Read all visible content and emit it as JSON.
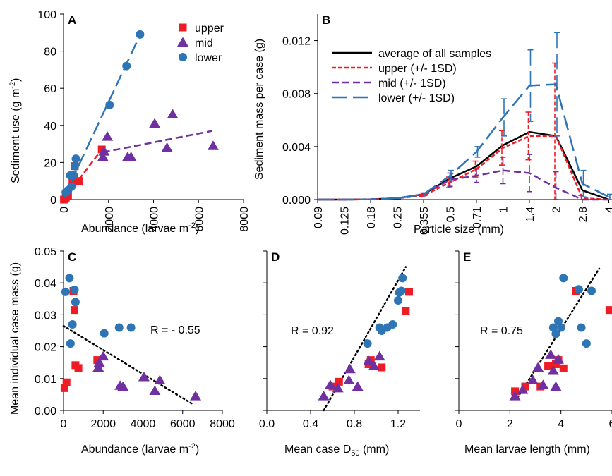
{
  "colors": {
    "upper": "#ee1c25",
    "mid": "#7030a0",
    "lower": "#2e75b6",
    "average": "#000000"
  },
  "chart_data": [
    {
      "panel": "A",
      "type": "scatter",
      "xlabel_pre": "Abundance (larvae m",
      "xlabel_sup": "-2",
      "xlabel_post": ")",
      "ylabel_pre": "Sediment use (g m",
      "ylabel_sup": "-2",
      "ylabel_post": ")",
      "xlim": [
        0,
        8000
      ],
      "ylim": [
        0,
        100
      ],
      "xticks": [
        "0",
        "2000",
        "4000",
        "6000",
        "8000"
      ],
      "yticks": [
        "0",
        "20",
        "40",
        "60",
        "80",
        "100"
      ],
      "legend_position": "top-right",
      "legend": [
        "upper",
        "mid",
        "lower"
      ],
      "series": [
        {
          "name": "upper",
          "marker": "square",
          "x": [
            20,
            100,
            200,
            400,
            500,
            700,
            1700
          ],
          "y": [
            0,
            1,
            2,
            9,
            18,
            10,
            27
          ],
          "fit": [
            [
              0,
              0
            ],
            [
              1700,
              27
            ]
          ]
        },
        {
          "name": "mid",
          "marker": "triangle",
          "x": [
            1750,
            1800,
            1950,
            2850,
            3000,
            4050,
            4600,
            4850,
            6650
          ],
          "y": [
            23,
            26,
            34,
            23,
            23,
            41,
            28,
            46,
            29
          ],
          "fit": [
            [
              1750,
              25.5
            ],
            [
              6600,
              37
            ]
          ]
        },
        {
          "name": "lower",
          "marker": "circle",
          "x": [
            100,
            200,
            300,
            350,
            450,
            500,
            550,
            2050,
            2800,
            3400
          ],
          "y": [
            4,
            5,
            13,
            7,
            13,
            18,
            22,
            51,
            72,
            89
          ],
          "fit": [
            [
              0,
              1
            ],
            [
              3450,
              90
            ]
          ]
        }
      ]
    },
    {
      "panel": "B",
      "type": "line",
      "xlabel": "Particle size (mm)",
      "ylabel": "Sediment mass per case (g)",
      "categories": [
        "0.09",
        "0.125",
        "0.18",
        "0.25",
        "0.355",
        "0.5",
        "0.71",
        "1",
        "1.4",
        "2",
        "2.8",
        "4"
      ],
      "ylim": [
        0,
        0.014
      ],
      "yticks": [
        "0.000",
        "0.004",
        "0.008",
        "0.012"
      ],
      "legend_position": "top-left",
      "series": [
        {
          "name": "average of all samples",
          "dash": "solid",
          "values": [
            0,
            0,
            2e-05,
            0.0001,
            0.0004,
            0.0016,
            0.0025,
            0.0041,
            0.0051,
            0.0048,
            0.0007,
            0
          ]
        },
        {
          "name": "upper (+/- 1SD)",
          "dash": "short",
          "values": [
            0,
            0,
            2e-05,
            0.0001,
            0.0003,
            0.0013,
            0.0023,
            0.0039,
            0.0048,
            0.0048,
            0.0001,
            0
          ],
          "sd": [
            0,
            0,
            0,
            3e-05,
            0.0001,
            0.0004,
            0.0006,
            0.0013,
            0.0018,
            0.0055,
            0.0002,
            0
          ]
        },
        {
          "name": "mid (+/- 1SD)",
          "dash": "medium",
          "values": [
            0,
            0,
            2e-05,
            0.0001,
            0.0004,
            0.0015,
            0.0018,
            0.0022,
            0.002,
            0.0009,
            0,
            0
          ],
          "sd": [
            0,
            0,
            0,
            3e-05,
            0.0001,
            0.0005,
            0.0005,
            0.001,
            0.0014,
            0.0012,
            0,
            0
          ],
          "show_from": 0
        },
        {
          "name": "lower (+/- 1SD)",
          "dash": "long",
          "values": [
            0,
            0,
            2e-05,
            0.0001,
            0.0004,
            0.0018,
            0.0036,
            0.0062,
            0.0086,
            0.0087,
            0.0012,
            0.0002
          ],
          "sd": [
            0,
            0,
            0,
            3e-05,
            0.0001,
            0.0004,
            0.0004,
            0.0014,
            0.0027,
            0.0039,
            0.001,
            0.0002
          ]
        }
      ]
    },
    {
      "panel": "C",
      "type": "scatter",
      "xlabel_pre": "Abundance (larvae m",
      "xlabel_sup": "-2",
      "xlabel_post": ")",
      "ylabel": "Mean individual case mass (g)",
      "xlim": [
        0,
        8000
      ],
      "ylim": [
        0,
        0.05
      ],
      "xticks": [
        "0",
        "2000",
        "4000",
        "6000",
        "8000"
      ],
      "yticks": [
        "0.00",
        "0.01",
        "0.02",
        "0.03",
        "0.04",
        "0.05"
      ],
      "annotation": "R = - 0.55",
      "fit": [
        [
          0,
          0.0265
        ],
        [
          6500,
          0.002
        ]
      ],
      "series": [
        {
          "name": "upper",
          "marker": "square",
          "x": [
            50,
            150,
            500,
            550,
            600,
            750,
            1700
          ],
          "y": [
            0.007,
            0.0088,
            0.0375,
            0.0315,
            0.0142,
            0.0133,
            0.0158
          ]
        },
        {
          "name": "mid",
          "marker": "triangle",
          "x": [
            1750,
            1800,
            2000,
            2850,
            3000,
            4050,
            4600,
            4850,
            6650
          ],
          "y": [
            0.0135,
            0.015,
            0.017,
            0.0078,
            0.0075,
            0.0105,
            0.0062,
            0.0095,
            0.0045
          ]
        },
        {
          "name": "lower",
          "marker": "circle",
          "x": [
            100,
            300,
            350,
            450,
            550,
            600,
            2050,
            2800,
            3400
          ],
          "y": [
            0.0372,
            0.0415,
            0.021,
            0.027,
            0.0378,
            0.034,
            0.0242,
            0.026,
            0.026
          ]
        }
      ]
    },
    {
      "panel": "D",
      "type": "scatter",
      "xlabel_pre": "Mean case D",
      "xlabel_sub": "50",
      "xlabel_post": " (mm)",
      "xlim": [
        0,
        1.4
      ],
      "ylim": [
        0,
        0.05
      ],
      "xticks": [
        "0.0",
        "0.4",
        "0.8",
        "1.2"
      ],
      "annotation": "R = 0.92",
      "fit": [
        [
          0.52,
          0
        ],
        [
          1.27,
          0.045
        ]
      ],
      "series": [
        {
          "name": "upper",
          "marker": "square",
          "x": [
            0.6,
            0.66,
            0.93,
            0.95,
            1.05,
            1.27,
            1.3
          ],
          "y": [
            0.0075,
            0.009,
            0.0145,
            0.0158,
            0.0135,
            0.0312,
            0.0372
          ]
        },
        {
          "name": "mid",
          "marker": "triangle",
          "x": [
            0.52,
            0.58,
            0.65,
            0.75,
            0.76,
            0.83,
            0.93,
            0.98,
            1.03
          ],
          "y": [
            0.0045,
            0.008,
            0.007,
            0.0095,
            0.013,
            0.0075,
            0.0155,
            0.014,
            0.017
          ]
        },
        {
          "name": "lower",
          "marker": "circle",
          "x": [
            0.92,
            1.03,
            1.05,
            1.1,
            1.15,
            1.2,
            1.21,
            1.23,
            1.24
          ],
          "y": [
            0.021,
            0.026,
            0.025,
            0.026,
            0.027,
            0.0345,
            0.037,
            0.0375,
            0.0415
          ]
        }
      ]
    },
    {
      "panel": "E",
      "type": "scatter",
      "xlabel": "Mean larvae length (mm)",
      "xlim": [
        0,
        6
      ],
      "ylim": [
        0,
        0.05
      ],
      "xticks": [
        "0",
        "2",
        "4",
        "6"
      ],
      "annotation": "R = 0.75",
      "fit": [
        [
          2.3,
          0.004
        ],
        [
          5.5,
          0.0445
        ]
      ],
      "series": [
        {
          "name": "upper",
          "marker": "square",
          "x": [
            2.2,
            2.6,
            3.2,
            3.5,
            3.8,
            3.9,
            4.1,
            4.6,
            5.9
          ],
          "y": [
            0.006,
            0.0075,
            0.0075,
            0.014,
            0.0145,
            0.0158,
            0.0132,
            0.0375,
            0.0315
          ]
        },
        {
          "name": "mid",
          "marker": "triangle",
          "x": [
            2.2,
            2.5,
            2.9,
            3.1,
            3.3,
            3.6,
            3.7,
            3.8,
            3.9
          ],
          "y": [
            0.0045,
            0.0065,
            0.0095,
            0.0135,
            0.008,
            0.0175,
            0.0125,
            0.0075,
            0.016
          ]
        },
        {
          "name": "lower",
          "marker": "circle",
          "x": [
            3.7,
            3.8,
            3.9,
            4.0,
            4.1,
            4.8,
            5.0,
            5.2,
            4.7
          ],
          "y": [
            0.026,
            0.024,
            0.028,
            0.026,
            0.0415,
            0.026,
            0.021,
            0.0375,
            0.038
          ]
        }
      ]
    }
  ]
}
